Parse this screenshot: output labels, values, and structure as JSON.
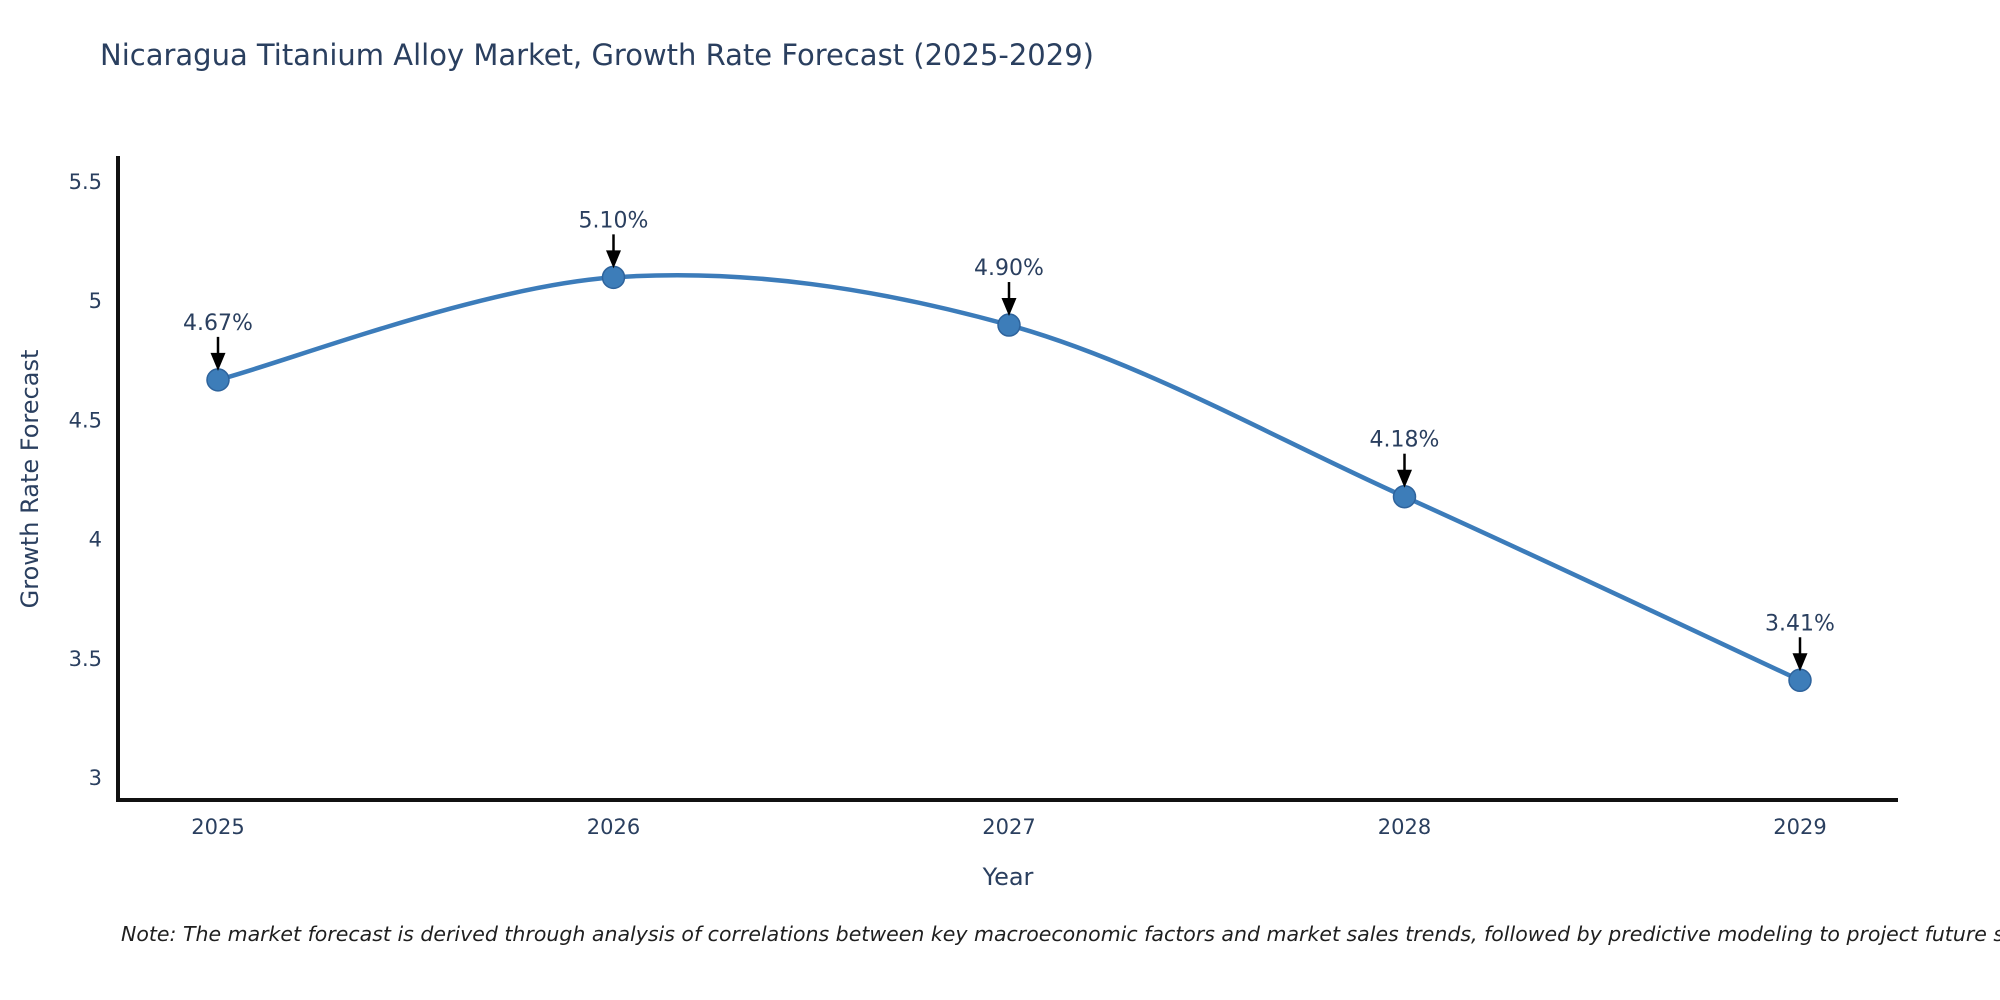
{
  "title": "Nicaragua Titanium Alloy Market, Growth Rate Forecast (2025-2029)",
  "note": "Note: The market forecast is derived through analysis of correlations between key macroeconomic factors and market sales trends, followed by predictive modeling to project future sales",
  "chart_data": {
    "type": "line",
    "title": "Nicaragua Titanium Alloy Market, Growth Rate Forecast (2025-2029)",
    "xlabel": "Year",
    "ylabel": "Growth Rate Forecast",
    "x": [
      2025,
      2026,
      2027,
      2028,
      2029
    ],
    "series": [
      {
        "name": "Growth Rate Forecast",
        "values": [
          4.67,
          5.1,
          4.9,
          4.18,
          3.41
        ]
      }
    ],
    "point_labels": [
      "4.67%",
      "5.10%",
      "4.90%",
      "4.18%",
      "3.41%"
    ],
    "yticks": [
      "3",
      "3.5",
      "4",
      "4.5",
      "5",
      "5.5"
    ],
    "ytick_values": [
      3,
      3.5,
      4,
      4.5,
      5,
      5.5
    ],
    "ylim": [
      2.9,
      5.6
    ],
    "grid": false,
    "legend": "none",
    "line_shape": "spline",
    "line_color": "#3c7cba",
    "marker_color": "#3d7db9",
    "marker_edge_color": "#2e639c",
    "axis_color": "#111111",
    "arrow_color": "#000000",
    "text_color": "#2a3f5f"
  }
}
